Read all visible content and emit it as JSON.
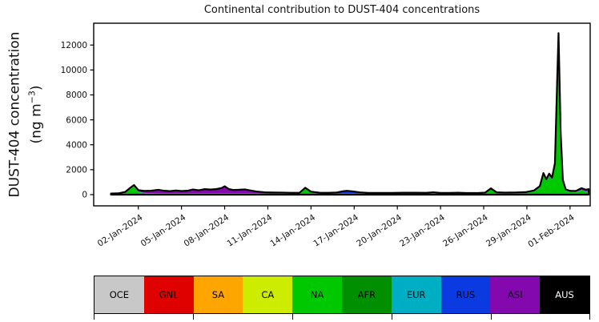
{
  "title": "Continental contribution to DUST-404 concentrations",
  "ylabel": {
    "line1": "DUST-404 concentration",
    "unit_prefix": "(ng m",
    "unit_sup": "−3",
    "unit_suffix": ")"
  },
  "chart_data": {
    "type": "area",
    "stacked": true,
    "title": "Continental contribution to DUST-404 concentrations",
    "xlabel": "",
    "ylabel": "DUST-404 concentration (ng m^-3)",
    "legend_position": "bottom-color-band",
    "grid": false,
    "x_unit": "days since 01-Jan-2024 00:00",
    "xlim": [
      -2.1,
      32.4
    ],
    "ylim": [
      -900,
      13750
    ],
    "yticks": [
      0,
      2000,
      4000,
      6000,
      8000,
      10000,
      12000
    ],
    "xticks": [
      {
        "v": 1,
        "label": "02-Jan-2024"
      },
      {
        "v": 4,
        "label": "05-Jan-2024"
      },
      {
        "v": 7,
        "label": "08-Jan-2024"
      },
      {
        "v": 10,
        "label": "11-Jan-2024"
      },
      {
        "v": 13,
        "label": "14-Jan-2024"
      },
      {
        "v": 16,
        "label": "17-Jan-2024"
      },
      {
        "v": 19,
        "label": "20-Jan-2024"
      },
      {
        "v": 22,
        "label": "23-Jan-2024"
      },
      {
        "v": 25,
        "label": "26-Jan-2024"
      },
      {
        "v": 28,
        "label": "29-Jan-2024"
      },
      {
        "v": 31,
        "label": "01-Feb-2024"
      }
    ],
    "x": [
      -0.9,
      -0.4,
      0.1,
      0.45,
      0.7,
      1.0,
      1.4,
      1.9,
      2.4,
      2.8,
      3.2,
      3.6,
      4.0,
      4.4,
      4.8,
      5.2,
      5.6,
      6.0,
      6.4,
      6.8,
      7.0,
      7.3,
      7.6,
      8.0,
      8.4,
      8.8,
      9.2,
      9.8,
      10.4,
      11.0,
      11.6,
      12.2,
      12.6,
      13.0,
      13.6,
      14.2,
      14.8,
      15.2,
      15.5,
      15.9,
      16.4,
      17.0,
      17.8,
      18.6,
      19.4,
      20.2,
      21.0,
      21.5,
      22.0,
      22.6,
      23.2,
      23.8,
      24.6,
      25.1,
      25.5,
      25.9,
      26.5,
      27.2,
      27.9,
      28.5,
      28.9,
      29.15,
      29.35,
      29.55,
      29.75,
      29.95,
      30.1,
      30.2,
      30.35,
      30.5,
      30.7,
      31.0,
      31.4,
      31.8,
      32.1,
      32.3
    ],
    "series": [
      {
        "name": "OCE",
        "color": "#c8c8c8",
        "values": 8
      },
      {
        "name": "GNL",
        "color": "#df0000",
        "values": [
          0,
          0,
          0,
          0,
          0,
          0,
          0,
          0,
          0,
          0,
          0,
          0,
          0,
          0,
          0,
          0,
          0,
          0,
          0,
          0,
          0,
          0,
          0,
          0,
          0,
          0,
          0,
          0,
          0,
          0,
          0,
          0,
          0,
          0,
          0,
          0,
          0,
          0,
          0,
          0,
          0,
          0,
          0,
          0,
          0,
          0,
          0,
          30,
          0,
          0,
          12,
          0,
          0,
          0,
          0,
          0,
          0,
          0,
          0,
          0,
          0,
          0,
          0,
          0,
          0,
          0,
          0,
          0,
          0,
          0,
          0,
          0,
          0,
          0,
          0,
          0
        ]
      },
      {
        "name": "SA",
        "color": "#ffa500",
        "values": 12
      },
      {
        "name": "CA",
        "color": "#cdec00",
        "values": [
          18,
          18,
          18,
          18,
          18,
          18,
          18,
          18,
          18,
          18,
          18,
          18,
          18,
          18,
          18,
          18,
          18,
          18,
          18,
          18,
          18,
          18,
          18,
          18,
          18,
          18,
          18,
          18,
          18,
          18,
          18,
          18,
          18,
          18,
          28,
          28,
          28,
          28,
          28,
          28,
          28,
          28,
          28,
          28,
          28,
          28,
          28,
          28,
          28,
          28,
          18,
          18,
          18,
          18,
          18,
          18,
          18,
          18,
          18,
          18,
          18,
          18,
          18,
          18,
          18,
          18,
          18,
          18,
          18,
          18,
          18,
          18,
          18,
          18,
          18,
          18
        ]
      },
      {
        "name": "NA",
        "color": "#00c800",
        "values": [
          10,
          20,
          120,
          420,
          620,
          160,
          60,
          30,
          25,
          25,
          25,
          25,
          25,
          25,
          25,
          25,
          25,
          25,
          25,
          25,
          25,
          25,
          25,
          25,
          25,
          25,
          25,
          25,
          25,
          30,
          25,
          30,
          430,
          120,
          30,
          25,
          25,
          25,
          25,
          25,
          25,
          25,
          25,
          25,
          25,
          25,
          30,
          40,
          25,
          25,
          40,
          25,
          30,
          60,
          400,
          80,
          60,
          70,
          90,
          200,
          500,
          1500,
          1020,
          1450,
          1150,
          2250,
          8500,
          12500,
          4600,
          950,
          260,
          160,
          140,
          300,
          200,
          240
        ]
      },
      {
        "name": "AFR",
        "color": "#008f00",
        "values": 10
      },
      {
        "name": "EUR",
        "color": "#00aec4",
        "values": [
          12,
          12,
          12,
          12,
          12,
          25,
          25,
          25,
          25,
          25,
          25,
          25,
          25,
          25,
          25,
          25,
          25,
          25,
          25,
          25,
          25,
          25,
          25,
          25,
          25,
          25,
          25,
          12,
          12,
          12,
          12,
          12,
          12,
          12,
          12,
          12,
          12,
          12,
          12,
          12,
          12,
          12,
          12,
          12,
          12,
          12,
          12,
          12,
          12,
          12,
          12,
          12,
          12,
          12,
          12,
          12,
          12,
          12,
          12,
          12,
          12,
          12,
          12,
          12,
          12,
          12,
          12,
          12,
          12,
          12,
          12,
          12,
          12,
          12,
          12,
          12
        ]
      },
      {
        "name": "RUS",
        "color": "#0b3be0",
        "values": [
          8,
          8,
          8,
          8,
          8,
          8,
          8,
          8,
          8,
          8,
          8,
          8,
          8,
          8,
          8,
          8,
          8,
          8,
          8,
          8,
          8,
          8,
          8,
          8,
          8,
          8,
          8,
          8,
          8,
          8,
          8,
          8,
          8,
          8,
          8,
          8,
          40,
          140,
          180,
          130,
          50,
          8,
          8,
          8,
          20,
          20,
          8,
          8,
          8,
          8,
          8,
          8,
          8,
          8,
          8,
          8,
          8,
          8,
          8,
          8,
          8,
          8,
          8,
          8,
          8,
          8,
          8,
          8,
          8,
          8,
          8,
          8,
          8,
          8,
          8,
          8
        ]
      },
      {
        "name": "ASI",
        "color": "#8309af",
        "values": [
          5,
          10,
          30,
          60,
          80,
          120,
          150,
          200,
          280,
          200,
          170,
          220,
          180,
          200,
          300,
          240,
          330,
          300,
          330,
          420,
          560,
          330,
          260,
          280,
          310,
          220,
          140,
          90,
          70,
          60,
          50,
          45,
          50,
          45,
          40,
          35,
          30,
          30,
          30,
          30,
          30,
          30,
          30,
          30,
          30,
          30,
          30,
          30,
          30,
          30,
          30,
          30,
          30,
          30,
          30,
          30,
          30,
          30,
          35,
          60,
          110,
          160,
          140,
          160,
          150,
          200,
          350,
          380,
          280,
          160,
          90,
          70,
          80,
          150,
          120,
          130
        ]
      },
      {
        "name": "AUS",
        "color": "#000000",
        "values": 5
      }
    ]
  }
}
